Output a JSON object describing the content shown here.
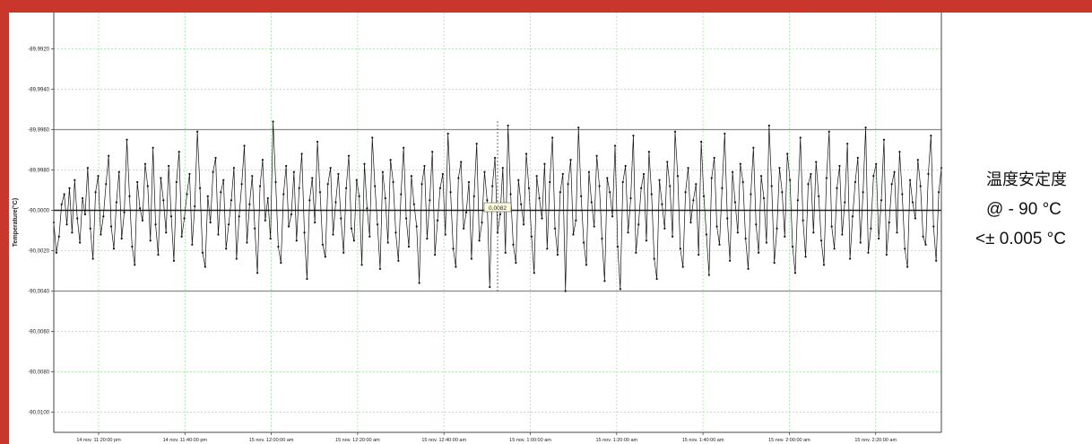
{
  "annotation": {
    "line1": "温度安定度",
    "line2": "@ - 90 °C",
    "line3": "<± 0.005 °C"
  },
  "chart_data": {
    "type": "line",
    "title": "",
    "xlabel": "",
    "ylabel": "Temperature(°C)",
    "ylim": [
      -90.011,
      -89.9902
    ],
    "y_ticks": [
      -89.992,
      -89.994,
      -89.996,
      -89.998,
      -90.0,
      -90.002,
      -90.004,
      -90.006,
      -90.008,
      -90.01
    ],
    "y_tick_labels": [
      "-89,9920",
      "-89,9940",
      "-89,9960",
      "-89,9980",
      "-90,0000",
      "-90,0020",
      "-90,0040",
      "-90,0060",
      "-90,0080",
      "-90,0100"
    ],
    "x_tick_labels": [
      "14 nov. 11:20:00 pm",
      "14 nov. 11:40:00 pm",
      "15 nov. 12:00:00 am",
      "15 nov. 12:20:00 am",
      "15 nov. 12:40:00 am",
      "15 nov. 1:00:00 am",
      "15 nov. 1:20:00 am",
      "15 nov. 1:40:00 am",
      "15 nov. 2:00:00 am",
      "15 nov. 2:20:00 am"
    ],
    "reference_lines": [
      -89.996,
      -90.0,
      -90.004
    ],
    "cursor_label": "0,0082",
    "grid": true,
    "series": [
      {
        "values": [
          -90.0006,
          -90.0021,
          -90.0013,
          -89.9997,
          -89.9992,
          -90.0007,
          -89.9989,
          -90.0011,
          -89.9985,
          -90.0004,
          -90.0016,
          -89.9994,
          -90.0002,
          -89.9979,
          -90.0009,
          -90.0024,
          -89.9991,
          -89.9983,
          -90.0012,
          -90.0003,
          -89.9987,
          -89.9973,
          -90.0008,
          -90.0019,
          -89.9996,
          -89.9981,
          -90.0014,
          -90.0001,
          -89.9965,
          -89.9993,
          -90.0018,
          -90.0027,
          -89.9986,
          -89.9999,
          -90.0005,
          -89.9977,
          -89.9988,
          -90.0015,
          -89.9969,
          -90.0007,
          -90.0022,
          -89.9984,
          -89.9995,
          -90.0011,
          -89.9978,
          -90.0003,
          -90.0025,
          -89.9986,
          -89.9971,
          -90.0013,
          -90.0004,
          -89.9992,
          -89.9982,
          -90.0017,
          -89.9998,
          -89.9961,
          -89.9989,
          -90.0021,
          -90.0028,
          -89.9993,
          -90.0006,
          -89.9981,
          -89.9974,
          -90.0012,
          -89.9991,
          -89.9985,
          -90.0019,
          -90.0007,
          -89.9995,
          -89.9979,
          -90.0024,
          -90.0003,
          -89.9987,
          -89.9968,
          -90.0016,
          -89.9997,
          -89.9983,
          -90.0009,
          -90.0031,
          -89.9988,
          -89.9975,
          -90.0005,
          -89.9994,
          -90.0014,
          -89.9956,
          -89.9986,
          -90.0018,
          -90.0026,
          -89.9992,
          -89.9978,
          -90.0008,
          -90.0002,
          -89.9981,
          -90.0015,
          -89.9989,
          -89.9972,
          -90.0011,
          -90.0034,
          -89.9995,
          -89.9984,
          -90.0006,
          -89.9966,
          -89.9991,
          -90.0017,
          -90.0023,
          -89.9987,
          -89.9979,
          -90.0012,
          -89.9996,
          -89.9982,
          -90.0004,
          -90.0021,
          -89.9989,
          -89.9973,
          -90.0009,
          -90.0015,
          -89.9985,
          -89.9993,
          -90.0027,
          -89.9977,
          -89.9999,
          -90.0013,
          -89.9964,
          -89.9988,
          -90.0007,
          -90.0029,
          -89.9981,
          -89.9994,
          -90.0016,
          -89.9975,
          -89.9986,
          -90.0011,
          -90.0025,
          -89.9992,
          -89.9969,
          -90.0004,
          -90.0018,
          -89.9983,
          -89.9997,
          -90.0008,
          -90.0036,
          -89.9987,
          -89.9978,
          -90.0014,
          -89.9995,
          -89.9971,
          -90.0022,
          -90.0005,
          -89.9989,
          -89.9982,
          -90.0012,
          -89.9962,
          -89.9991,
          -90.0019,
          -90.0028,
          -89.9984,
          -89.9976,
          -90.0009,
          -90.0001,
          -89.9986,
          -90.0024,
          -89.9993,
          -89.9967,
          -90.0015,
          -90.0006,
          -89.9981,
          -89.9995,
          -90.0038,
          -89.9988,
          -89.9974,
          -90.0011,
          -90.0002,
          -89.9979,
          -90.0021,
          -89.9958,
          -89.9992,
          -90.0017,
          -90.0026,
          -89.9985,
          -89.9997,
          -90.0007,
          -89.9972,
          -89.9989,
          -90.0013,
          -90.0031,
          -89.9983,
          -89.9994,
          -90.0004,
          -89.9977,
          -90.0019,
          -89.9986,
          -89.9964,
          -90.0009,
          -90.0022,
          -89.9991,
          -89.9982,
          -90.004,
          -89.9987,
          -89.9975,
          -90.0012,
          -90.0005,
          -89.9959,
          -89.9993,
          -90.0016,
          -90.0027,
          -89.9981,
          -89.9996,
          -90.0008,
          -89.9973,
          -89.9988,
          -90.0014,
          -90.0035,
          -89.9984,
          -89.9991,
          -90.0003,
          -89.9968,
          -90.0018,
          -90.0039,
          -89.9986,
          -89.9978,
          -90.0011,
          -89.9994,
          -89.9963,
          -90.0021,
          -90.0007,
          -89.9989,
          -89.9982,
          -90.0015,
          -89.9971,
          -89.9992,
          -90.0024,
          -90.0034,
          -89.9985,
          -89.9997,
          -90.0009,
          -89.9976,
          -89.9988,
          -90.0013,
          -89.9961,
          -89.9983,
          -90.0019,
          -90.0028,
          -89.9991,
          -89.9979,
          -90.0006,
          -89.9995,
          -89.9987,
          -90.0022,
          -89.9966,
          -89.9993,
          -90.0012,
          -90.0032,
          -89.9984,
          -89.9974,
          -90.0008,
          -90.0017,
          -89.9989,
          -89.9962,
          -90.0004,
          -90.0025,
          -89.9981,
          -89.9996,
          -90.0011,
          -89.9977,
          -89.9986,
          -90.0014,
          -90.0029,
          -89.9992,
          -89.9969,
          -90.0007,
          -90.0021,
          -89.9983,
          -89.9994,
          -90.0016,
          -89.9958,
          -89.9988,
          -90.0026,
          -90.0009,
          -89.9979,
          -89.9991,
          -90.0013,
          -89.9972,
          -89.9985,
          -90.0018,
          -90.0031,
          -89.9995,
          -89.9964,
          -90.0005,
          -90.0023,
          -89.9987,
          -89.9982,
          -90.0011,
          -89.9976,
          -89.9993,
          -90.0015,
          -90.0027,
          -89.9984,
          -89.9961,
          -90.0008,
          -90.0019,
          -89.9989,
          -89.9978,
          -90.0012,
          -89.9996,
          -89.9967,
          -90.0024,
          -90.0003,
          -89.9986,
          -89.9974,
          -90.0016,
          -89.9991,
          -89.9959,
          -90.0021,
          -90.0009,
          -89.9983,
          -89.9977,
          -90.0014,
          -89.9995,
          -89.9965,
          -90.0022,
          -90.0006,
          -89.9987,
          -89.9981,
          -90.0011,
          -89.9971,
          -89.9992,
          -90.0019,
          -90.0028,
          -89.9985,
          -89.9996,
          -90.0004,
          -89.9975,
          -89.9988,
          -90.0013,
          -90.0017,
          -89.9982,
          -89.9963,
          -90.0008,
          -90.0025,
          -89.9991,
          -89.9979
        ]
      }
    ]
  }
}
